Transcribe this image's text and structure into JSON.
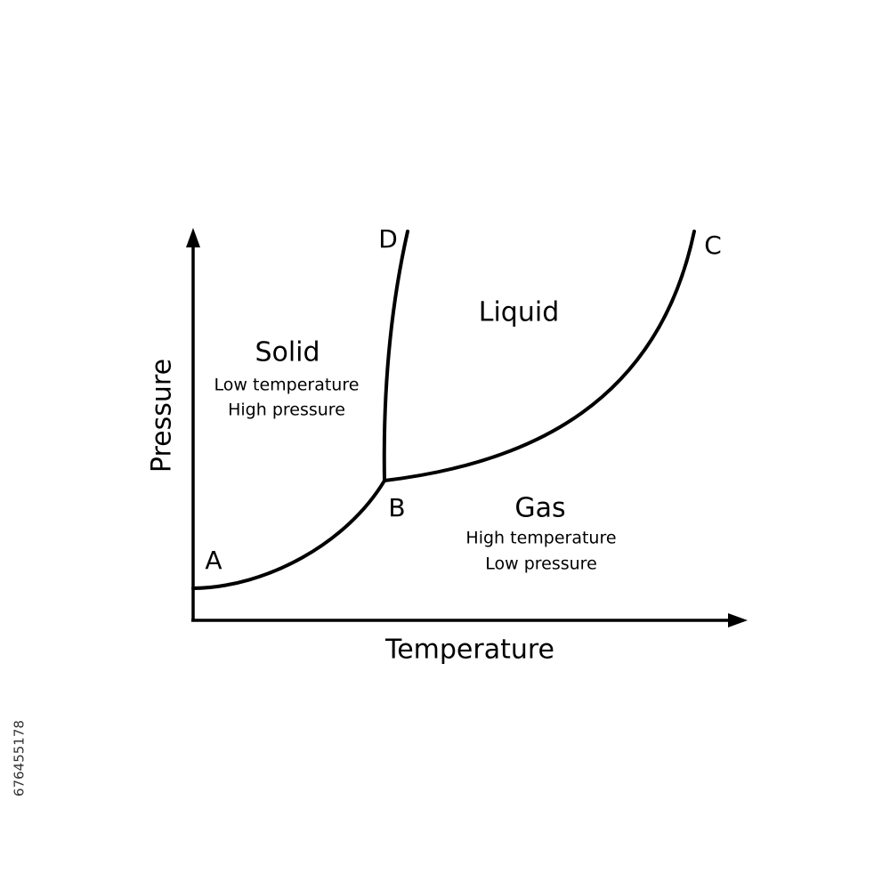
{
  "axes": {
    "x_label": "Temperature",
    "y_label": "Pressure"
  },
  "regions": [
    {
      "name": "Solid",
      "lines": [
        "Low temperature",
        "High pressure"
      ]
    },
    {
      "name": "Liquid"
    },
    {
      "name": "Gas",
      "lines": [
        "High temperature",
        "Low pressure"
      ]
    }
  ],
  "points": [
    "A",
    "B",
    "C",
    "D"
  ],
  "side_text": "676455178"
}
